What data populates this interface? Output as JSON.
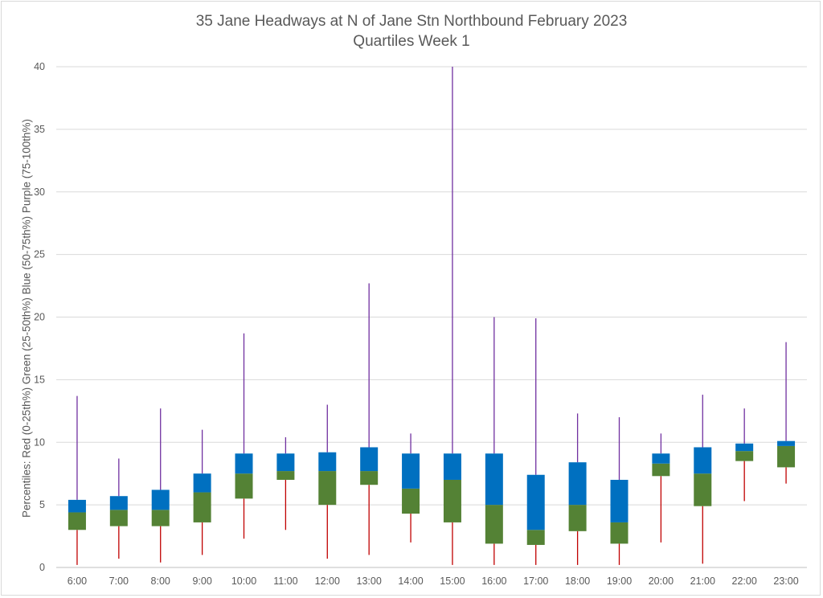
{
  "chart_data": {
    "type": "box",
    "title": "35 Jane Headways at N of Jane Stn Northbound February 2023",
    "subtitle": "Quartiles Week 1",
    "ylabel": "Percentiles:  Red (0-25th%)  Green (25-50th%)  Blue (50-75th%)  Purple (75-100th%)",
    "xlabel": "",
    "ylim": [
      0,
      40
    ],
    "yticks": [
      0,
      5,
      10,
      15,
      20,
      25,
      30,
      35,
      40
    ],
    "grid": true,
    "legend": "none",
    "categories": [
      "6:00",
      "7:00",
      "8:00",
      "9:00",
      "10:00",
      "11:00",
      "12:00",
      "13:00",
      "14:00",
      "15:00",
      "16:00",
      "17:00",
      "18:00",
      "19:00",
      "20:00",
      "21:00",
      "22:00",
      "23:00"
    ],
    "series": [
      {
        "name": "Red (0-25th%)",
        "stat": "min",
        "color": "#c00000",
        "values": [
          0.2,
          0.7,
          0.4,
          1.0,
          2.3,
          3.0,
          0.7,
          1.0,
          2.0,
          0.2,
          0.2,
          0.2,
          0.2,
          0.2,
          2.0,
          0.3,
          5.3,
          6.7
        ]
      },
      {
        "name": "Green (25-50th%)",
        "stat": "q1",
        "color": "#548235",
        "values": [
          3.0,
          3.3,
          3.3,
          3.6,
          5.5,
          7.0,
          5.0,
          6.6,
          4.3,
          3.6,
          1.9,
          1.8,
          2.9,
          1.9,
          7.3,
          4.9,
          8.5,
          8.0
        ]
      },
      {
        "name": "Blue (50-75th%)",
        "stat": "median",
        "color": "#0070c0",
        "values": [
          4.4,
          4.6,
          4.6,
          6.0,
          7.5,
          7.7,
          7.7,
          7.7,
          6.3,
          7.0,
          5.0,
          3.0,
          5.0,
          3.6,
          8.3,
          7.5,
          9.3,
          9.7
        ]
      },
      {
        "name": "Purple (75-100th%)",
        "stat": "q3",
        "color": "#7030a0",
        "values": [
          5.4,
          5.7,
          6.2,
          7.5,
          9.1,
          9.1,
          9.2,
          9.6,
          9.1,
          9.1,
          9.1,
          7.4,
          8.4,
          7.0,
          9.1,
          9.6,
          9.9,
          10.1
        ]
      },
      {
        "name": "max",
        "stat": "max",
        "values": [
          13.7,
          8.7,
          12.7,
          11.0,
          18.7,
          10.4,
          13.0,
          22.7,
          10.7,
          40.0,
          20.0,
          19.9,
          12.3,
          12.0,
          10.7,
          13.8,
          12.7,
          18.0
        ]
      }
    ]
  }
}
